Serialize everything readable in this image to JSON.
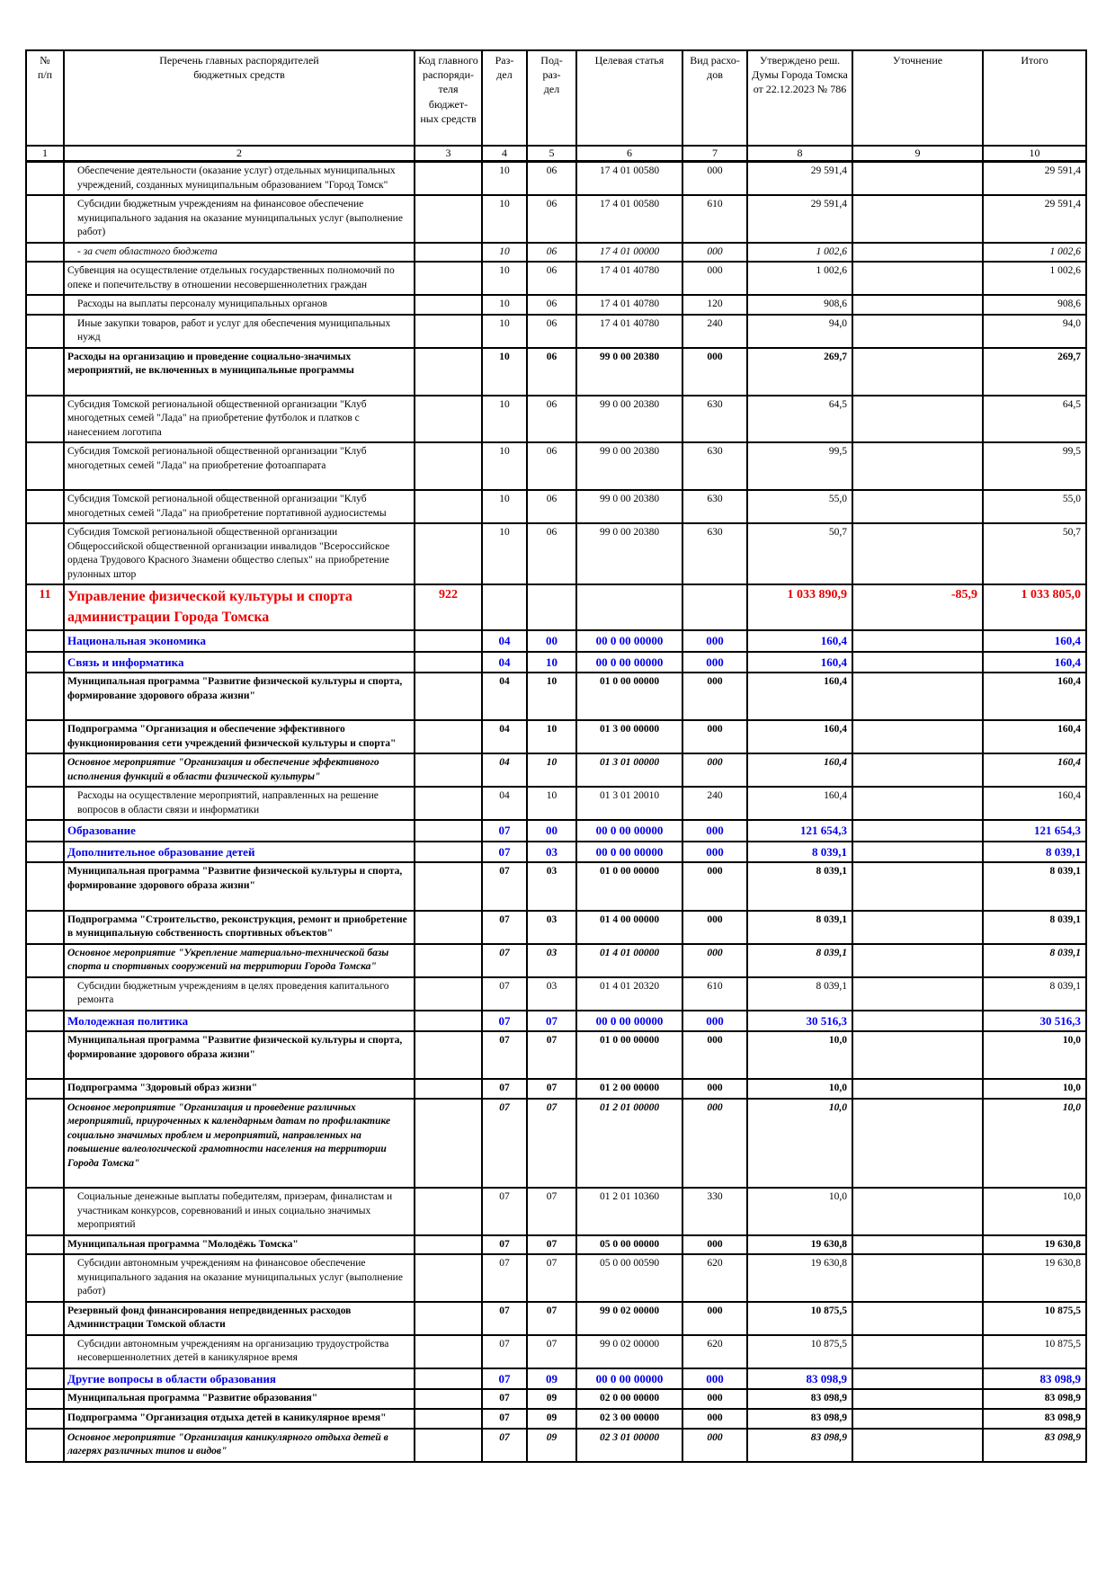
{
  "colors": {
    "section_blue": "#0000ee",
    "chief_red": "#e90000",
    "border": "#000000",
    "background": "#ffffff"
  },
  "table": {
    "columns": [
      "№\nп/п",
      "Перечень главных распорядителей\nбюджетных средств",
      "Код главного\nраспоряди-\nтеля бюджет-\nных средств",
      "Раз-\nдел",
      "Под-\nраз-\nдел",
      "Целевая статья",
      "Вид расхо-\nдов",
      "Утверждено реш.\nДумы Города Томска\nот 22.12.2023 № 786",
      "Уточнение",
      "Итого"
    ],
    "column_numbers": [
      "1",
      "2",
      "3",
      "4",
      "5",
      "6",
      "7",
      "8",
      "9",
      "10"
    ],
    "rows": [
      {
        "n": "",
        "name": "Обеспечение деятельности (оказание услуг) отдельных муниципальных учреждений, созданных муниципальным образованием \"Город Томск\"",
        "c3": "",
        "c4": "10",
        "c5": "06",
        "c6": "17 4 01 00580",
        "c7": "000",
        "c8": "29 591,4",
        "c9": "",
        "c10": "29 591,4",
        "style": "",
        "indent": 1
      },
      {
        "n": "",
        "name": "Субсидии бюджетным учреждениям на финансовое обеспечение муниципального задания на оказание муниципальных услуг (выполнение работ)",
        "c3": "",
        "c4": "10",
        "c5": "06",
        "c6": "17 4 01 00580",
        "c7": "610",
        "c8": "29 591,4",
        "c9": "",
        "c10": "29 591,4",
        "style": "",
        "indent": 1
      },
      {
        "n": "",
        "name": "- за счет областного бюджета",
        "c3": "",
        "c4": "10",
        "c5": "06",
        "c6": "17 4 01 00000",
        "c7": "000",
        "c8": "1 002,6",
        "c9": "",
        "c10": "1 002,6",
        "style": "italic",
        "indent": 1
      },
      {
        "n": "",
        "name": "Субвенция на осуществление отдельных государственных полномочий по опеке и попечительству в отношении несовершеннолетних граждан",
        "c3": "",
        "c4": "10",
        "c5": "06",
        "c6": "17 4 01 40780",
        "c7": "000",
        "c8": "1 002,6",
        "c9": "",
        "c10": "1 002,6",
        "style": "",
        "indent": 0
      },
      {
        "n": "",
        "name": "Расходы на выплаты персоналу муниципальных органов",
        "c3": "",
        "c4": "10",
        "c5": "06",
        "c6": "17 4 01 40780",
        "c7": "120",
        "c8": "908,6",
        "c9": "",
        "c10": "908,6",
        "style": "",
        "indent": 1
      },
      {
        "n": "",
        "name": "Иные закупки товаров, работ и услуг для обеспечения муниципальных нужд",
        "c3": "",
        "c4": "10",
        "c5": "06",
        "c6": "17 4 01 40780",
        "c7": "240",
        "c8": "94,0",
        "c9": "",
        "c10": "94,0",
        "style": "",
        "indent": 1
      },
      {
        "n": "",
        "name": "Расходы на организацию и проведение социально-значимых мероприятий, не включенных в муниципальные программы",
        "c3": "",
        "c4": "10",
        "c5": "06",
        "c6": "99 0 00 20380",
        "c7": "000",
        "c8": "269,7",
        "c9": "",
        "c10": "269,7",
        "style": "bold",
        "indent": 0,
        "pad": 1
      },
      {
        "n": "",
        "name": "Субсидия Томской региональной общественной организации \"Клуб многодетных семей \"Лада\" на приобретение футболок и платков с нанесением логотипа",
        "c3": "",
        "c4": "10",
        "c5": "06",
        "c6": "99 0 00 20380",
        "c7": "630",
        "c8": "64,5",
        "c9": "",
        "c10": "64,5",
        "style": "",
        "indent": 0
      },
      {
        "n": "",
        "name": "Субсидия Томской региональной общественной организации \"Клуб многодетных семей \"Лада\" на приобретение фотоаппарата",
        "c3": "",
        "c4": "10",
        "c5": "06",
        "c6": "99 0 00 20380",
        "c7": "630",
        "c8": "99,5",
        "c9": "",
        "c10": "99,5",
        "style": "",
        "indent": 0,
        "pad": 1
      },
      {
        "n": "",
        "name": "Субсидия Томской региональной общественной организации \"Клуб многодетных семей \"Лада\" на приобретение портативной аудиосистемы",
        "c3": "",
        "c4": "10",
        "c5": "06",
        "c6": "99 0 00 20380",
        "c7": "630",
        "c8": "55,0",
        "c9": "",
        "c10": "55,0",
        "style": "",
        "indent": 0
      },
      {
        "n": "",
        "name": "Субсидия Томской региональной общественной организации Общероссийской общественной организации инвалидов \"Всероссийское ордена Трудового Красного Знамени общество слепых\" на приобретение рулонных штор",
        "c3": "",
        "c4": "10",
        "c5": "06",
        "c6": "99 0 00 20380",
        "c7": "630",
        "c8": "50,7",
        "c9": "",
        "c10": "50,7",
        "style": "",
        "indent": 0
      },
      {
        "n": "11",
        "name": "Управление физической культуры и спорта администрации Города Томска",
        "c3": "922",
        "c4": "",
        "c5": "",
        "c6": "",
        "c7": "",
        "c8": "1 033 890,9",
        "c9": "-85,9",
        "c10": "1 033 805,0",
        "style": "red",
        "indent": 0
      },
      {
        "n": "",
        "name": "Национальная экономика",
        "c3": "",
        "c4": "04",
        "c5": "00",
        "c6": "00 0 00 00000",
        "c7": "000",
        "c8": "160,4",
        "c9": "",
        "c10": "160,4",
        "style": "blue",
        "indent": 0
      },
      {
        "n": "",
        "name": "Связь и информатика",
        "c3": "",
        "c4": "04",
        "c5": "10",
        "c6": "00 0 00 00000",
        "c7": "000",
        "c8": "160,4",
        "c9": "",
        "c10": "160,4",
        "style": "blue",
        "indent": 0
      },
      {
        "n": "",
        "name": "Муниципальная программа \"Развитие физической культуры и спорта, формирование здорового образа жизни\"",
        "c3": "",
        "c4": "04",
        "c5": "10",
        "c6": "01 0 00 00000",
        "c7": "000",
        "c8": "160,4",
        "c9": "",
        "c10": "160,4",
        "style": "bold",
        "indent": 0,
        "pad": 1
      },
      {
        "n": "",
        "name": "Подпрограмма \"Организация и обеспечение эффективного функционирования сети учреждений физической культуры и спорта\"",
        "c3": "",
        "c4": "04",
        "c5": "10",
        "c6": "01 3 00 00000",
        "c7": "000",
        "c8": "160,4",
        "c9": "",
        "c10": "160,4",
        "style": "bold",
        "indent": 0
      },
      {
        "n": "",
        "name": "Основное мероприятие \"Организация и обеспечение эффективного исполнения функций в области физической культуры\"",
        "c3": "",
        "c4": "04",
        "c5": "10",
        "c6": "01 3 01 00000",
        "c7": "000",
        "c8": "160,4",
        "c9": "",
        "c10": "160,4",
        "style": "bolditalic",
        "indent": 0
      },
      {
        "n": "",
        "name": "Расходы на осуществление мероприятий, направленных на решение вопросов в области связи и информатики",
        "c3": "",
        "c4": "04",
        "c5": "10",
        "c6": "01 3 01 20010",
        "c7": "240",
        "c8": "160,4",
        "c9": "",
        "c10": "160,4",
        "style": "",
        "indent": 1
      },
      {
        "n": "",
        "name": "Образование",
        "c3": "",
        "c4": "07",
        "c5": "00",
        "c6": "00 0 00 00000",
        "c7": "000",
        "c8": "121 654,3",
        "c9": "",
        "c10": "121 654,3",
        "style": "blue",
        "indent": 0
      },
      {
        "n": "",
        "name": "Дополнительное образование детей",
        "c3": "",
        "c4": "07",
        "c5": "03",
        "c6": "00 0 00 00000",
        "c7": "000",
        "c8": "8 039,1",
        "c9": "",
        "c10": "8 039,1",
        "style": "blue",
        "indent": 0
      },
      {
        "n": "",
        "name": "Муниципальная программа \"Развитие физической культуры и спорта, формирование здорового образа жизни\"",
        "c3": "",
        "c4": "07",
        "c5": "03",
        "c6": "01 0 00 00000",
        "c7": "000",
        "c8": "8 039,1",
        "c9": "",
        "c10": "8 039,1",
        "style": "bold",
        "indent": 0,
        "pad": 1
      },
      {
        "n": "",
        "name": "Подпрограмма \"Строительство, реконструкция, ремонт и приобретение в муниципальную собственность спортивных объектов\"",
        "c3": "",
        "c4": "07",
        "c5": "03",
        "c6": "01 4 00 00000",
        "c7": "000",
        "c8": "8 039,1",
        "c9": "",
        "c10": "8 039,1",
        "style": "bold",
        "indent": 0
      },
      {
        "n": "",
        "name": "Основное мероприятие \"Укрепление материально-технической базы спорта и спортивных сооружений на территории Города Томска\"",
        "c3": "",
        "c4": "07",
        "c5": "03",
        "c6": "01 4 01 00000",
        "c7": "000",
        "c8": "8 039,1",
        "c9": "",
        "c10": "8 039,1",
        "style": "bolditalic",
        "indent": 0
      },
      {
        "n": "",
        "name": "Субсидии бюджетным учреждениям в целях проведения капитального ремонта",
        "c3": "",
        "c4": "07",
        "c5": "03",
        "c6": "01 4 01 20320",
        "c7": "610",
        "c8": "8 039,1",
        "c9": "",
        "c10": "8 039,1",
        "style": "",
        "indent": 1
      },
      {
        "n": "",
        "name": "Молодежная политика",
        "c3": "",
        "c4": "07",
        "c5": "07",
        "c6": "00 0 00 00000",
        "c7": "000",
        "c8": "30 516,3",
        "c9": "",
        "c10": "30 516,3",
        "style": "blue",
        "indent": 0
      },
      {
        "n": "",
        "name": "Муниципальная программа \"Развитие физической культуры и спорта, формирование здорового образа жизни\"",
        "c3": "",
        "c4": "07",
        "c5": "07",
        "c6": "01 0 00 00000",
        "c7": "000",
        "c8": "10,0",
        "c9": "",
        "c10": "10,0",
        "style": "bold",
        "indent": 0,
        "pad": 1
      },
      {
        "n": "",
        "name": "Подпрограмма \"Здоровый образ жизни\"",
        "c3": "",
        "c4": "07",
        "c5": "07",
        "c6": "01 2 00 00000",
        "c7": "000",
        "c8": "10,0",
        "c9": "",
        "c10": "10,0",
        "style": "bold",
        "indent": 0
      },
      {
        "n": "",
        "name": "Основное мероприятие \"Организация и проведение различных мероприятий, приуроченных к календарным датам по профилактике социально значимых проблем и мероприятий, направленных на повышение валеологической грамотности населения на территории Города Томска\"",
        "c3": "",
        "c4": "07",
        "c5": "07",
        "c6": "01 2 01 00000",
        "c7": "000",
        "c8": "10,0",
        "c9": "",
        "c10": "10,0",
        "style": "bolditalic",
        "indent": 0,
        "pad": 1
      },
      {
        "n": "",
        "name": "Социальные денежные выплаты победителям, призерам, финалистам и участникам конкурсов, соревнований и иных социально значимых мероприятий",
        "c3": "",
        "c4": "07",
        "c5": "07",
        "c6": "01 2 01 10360",
        "c7": "330",
        "c8": "10,0",
        "c9": "",
        "c10": "10,0",
        "style": "",
        "indent": 1
      },
      {
        "n": "",
        "name": "Муниципальная программа \"Молодёжь Томска\"",
        "c3": "",
        "c4": "07",
        "c5": "07",
        "c6": "05 0 00 00000",
        "c7": "000",
        "c8": "19 630,8",
        "c9": "",
        "c10": "19 630,8",
        "style": "bold",
        "indent": 0
      },
      {
        "n": "",
        "name": "Субсидии автономным учреждениям на финансовое обеспечение муниципального задания на оказание муниципальных услуг (выполнение работ)",
        "c3": "",
        "c4": "07",
        "c5": "07",
        "c6": "05 0 00 00590",
        "c7": "620",
        "c8": "19 630,8",
        "c9": "",
        "c10": "19 630,8",
        "style": "",
        "indent": 1
      },
      {
        "n": "",
        "name": "Резервный фонд финансирования непредвиденных расходов Администрации Томской области",
        "c3": "",
        "c4": "07",
        "c5": "07",
        "c6": "99 0 02 00000",
        "c7": "000",
        "c8": "10 875,5",
        "c9": "",
        "c10": "10 875,5",
        "style": "bold",
        "indent": 0
      },
      {
        "n": "",
        "name": "Субсидии автономным учреждениям на организацию трудоустройства несовершеннолетних детей в каникулярное время",
        "c3": "",
        "c4": "07",
        "c5": "07",
        "c6": "99 0 02 00000",
        "c7": "620",
        "c8": "10 875,5",
        "c9": "",
        "c10": "10 875,5",
        "style": "",
        "indent": 1
      },
      {
        "n": "",
        "name": "Другие вопросы в области образования",
        "c3": "",
        "c4": "07",
        "c5": "09",
        "c6": "00 0 00 00000",
        "c7": "000",
        "c8": "83 098,9",
        "c9": "",
        "c10": "83 098,9",
        "style": "blue",
        "indent": 0
      },
      {
        "n": "",
        "name": "Муниципальная программа \"Развитие образования\"",
        "c3": "",
        "c4": "07",
        "c5": "09",
        "c6": "02 0 00 00000",
        "c7": "000",
        "c8": "83 098,9",
        "c9": "",
        "c10": "83 098,9",
        "style": "bold",
        "indent": 0
      },
      {
        "n": "",
        "name": "Подпрограмма \"Организация отдыха детей в каникулярное время\"",
        "c3": "",
        "c4": "07",
        "c5": "09",
        "c6": "02 3 00 00000",
        "c7": "000",
        "c8": "83 098,9",
        "c9": "",
        "c10": "83 098,9",
        "style": "bold",
        "indent": 0
      },
      {
        "n": "",
        "name": "Основное мероприятие \"Организация каникулярного отдыха детей в лагерях различных типов и видов\"",
        "c3": "",
        "c4": "07",
        "c5": "09",
        "c6": "02 3 01 00000",
        "c7": "000",
        "c8": "83 098,9",
        "c9": "",
        "c10": "83 098,9",
        "style": "bolditalic",
        "indent": 0
      }
    ]
  }
}
